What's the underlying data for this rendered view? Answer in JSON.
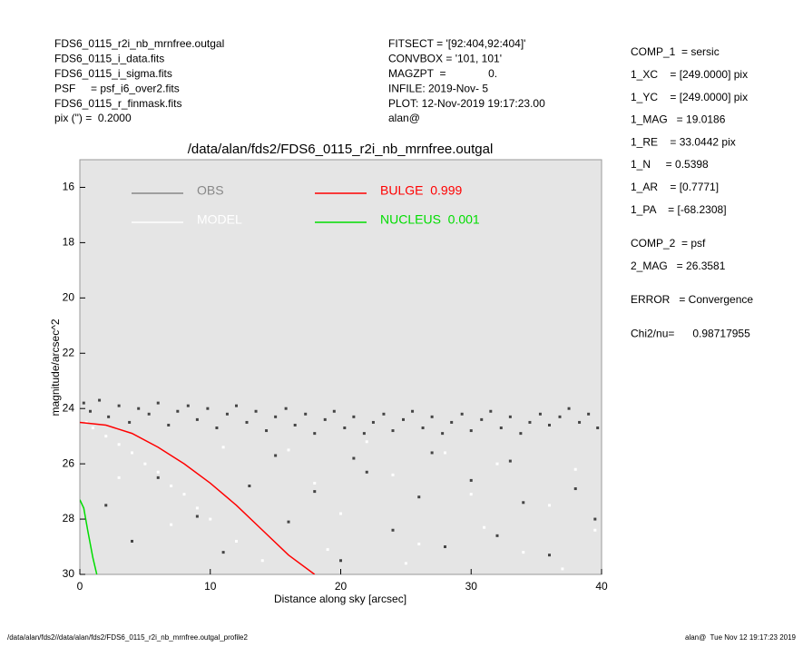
{
  "header_left": [
    "FDS6_0115_r2i_nb_mrnfree.outgal",
    "FDS6_0115_i_data.fits",
    "FDS6_0115_i_sigma.fits",
    "PSF     = psf_i6_over2.fits",
    "FDS6_0115_r_finmask.fits",
    "pix (\") =  0.2000"
  ],
  "header_middle": [
    "FITSECT = '[92:404,92:404]'",
    "CONVBOX = '101, 101'",
    "MAGZPT  =              0.",
    "INFILE: 2019-Nov- 5",
    "PLOT: 12-Nov-2019 19:17:23.00",
    "alan@"
  ],
  "parameters": [
    [
      "COMP_1  = sersic",
      "1_XC    = [249.0000] pix",
      "1_YC    = [249.0000] pix",
      "1_MAG   = 19.0186",
      "1_RE    = 33.0442 pix",
      "1_N     = 0.5398",
      "1_AR    = [0.7771]",
      "1_PA    = [-68.2308]"
    ],
    [
      "COMP_2  = psf",
      "2_MAG   = 26.3581"
    ],
    [
      "ERROR   = Convergence"
    ],
    [
      "Chi2/nu=      0.98717955"
    ]
  ],
  "footer_left": "/data/alan/fds2//data/alan/fds2/FDS6_0115_r2i_nb_mrnfree.outgal_profile2",
  "footer_right": "alan@  Tue Nov 12 19:17:23 2019",
  "chart_data": {
    "type": "scatter",
    "title": "/data/alan/fds2/FDS6_0115_r2i_nb_mrnfree.outgal",
    "x_label": "Distance along sky [arcsec]",
    "y_label": "magnitude/arcsec^2",
    "xlim": [
      0,
      40
    ],
    "xticks": [
      0,
      10,
      20,
      30,
      40
    ],
    "ylim": [
      30,
      15
    ],
    "yticks": [
      16,
      18,
      20,
      22,
      24,
      26,
      28,
      30
    ],
    "background": "#e5e5e5",
    "series": [
      {
        "name": "OBS",
        "type": "scatter",
        "color": "#444444",
        "legend_color": "#888888",
        "x": [
          0.3,
          0.8,
          1.5,
          2.2,
          3,
          3.8,
          4.5,
          5.3,
          6,
          6.8,
          7.5,
          8.3,
          9,
          9.8,
          10.5,
          11.3,
          12,
          12.8,
          13.5,
          14.3,
          15,
          15.8,
          16.5,
          17.3,
          18,
          18.8,
          19.5,
          20.3,
          21,
          21.8,
          22.5,
          23.3,
          24,
          24.8,
          25.5,
          26.3,
          27,
          27.8,
          28.5,
          29.3,
          30,
          30.8,
          31.5,
          32.3,
          33,
          33.8,
          34.5,
          35.3,
          36,
          36.8,
          37.5,
          38.3,
          39,
          39.7,
          2,
          4,
          6,
          9,
          11,
          13,
          16,
          18,
          20,
          22,
          24,
          26,
          28,
          30,
          32,
          34,
          36,
          38,
          39.5,
          21,
          27,
          33,
          15
        ],
        "values": [
          23.8,
          24.1,
          23.7,
          24.3,
          23.9,
          24.5,
          24.0,
          24.2,
          23.8,
          24.6,
          24.1,
          23.9,
          24.4,
          24.0,
          24.7,
          24.2,
          23.9,
          24.5,
          24.1,
          24.8,
          24.3,
          24.0,
          24.6,
          24.2,
          24.9,
          24.4,
          24.1,
          24.7,
          24.3,
          24.9,
          24.5,
          24.2,
          24.8,
          24.4,
          24.1,
          24.7,
          24.3,
          24.9,
          24.5,
          24.2,
          24.8,
          24.4,
          24.1,
          24.7,
          24.3,
          24.9,
          24.5,
          24.2,
          24.6,
          24.3,
          24.0,
          24.5,
          24.2,
          24.7,
          27.5,
          28.8,
          26.5,
          27.9,
          29.2,
          26.8,
          28.1,
          27.0,
          29.5,
          26.3,
          28.4,
          27.2,
          29.0,
          26.6,
          28.6,
          27.4,
          29.3,
          26.9,
          28.0,
          25.8,
          25.6,
          25.9,
          25.7
        ]
      },
      {
        "name": "MODEL",
        "type": "scatter",
        "color": "#ffffff",
        "legend_color": "#ffffff",
        "x": [
          0.5,
          1,
          2,
          3,
          4,
          5,
          6,
          7,
          8,
          9,
          10,
          12,
          14,
          16,
          18,
          20,
          22,
          24,
          26,
          28,
          30,
          32,
          34,
          36,
          38,
          39.5,
          19,
          25,
          31,
          37,
          3,
          7,
          11
        ],
        "values": [
          24.5,
          24.7,
          25.0,
          25.3,
          25.6,
          26.0,
          26.3,
          26.8,
          27.1,
          27.6,
          28.0,
          28.8,
          29.5,
          25.5,
          26.7,
          27.8,
          25.2,
          26.4,
          28.9,
          25.6,
          27.1,
          26.0,
          29.2,
          27.5,
          26.2,
          28.4,
          29.1,
          29.6,
          28.3,
          29.8,
          26.5,
          28.2,
          25.4
        ]
      },
      {
        "name": "BULGE  0.999",
        "type": "line",
        "color": "#ff0000",
        "legend_color": "#ff0000",
        "x": [
          0,
          2,
          4,
          6,
          8,
          10,
          12,
          14,
          16,
          18
        ],
        "values": [
          24.5,
          24.6,
          24.9,
          25.4,
          26.0,
          26.7,
          27.5,
          28.4,
          29.3,
          30.0
        ]
      },
      {
        "name": "NUCLEUS  0.001",
        "type": "line",
        "color": "#00dd00",
        "legend_color": "#00dd00",
        "x": [
          0,
          0.3,
          0.6,
          1,
          1.3
        ],
        "values": [
          27.3,
          27.6,
          28.4,
          29.4,
          30
        ]
      }
    ]
  }
}
